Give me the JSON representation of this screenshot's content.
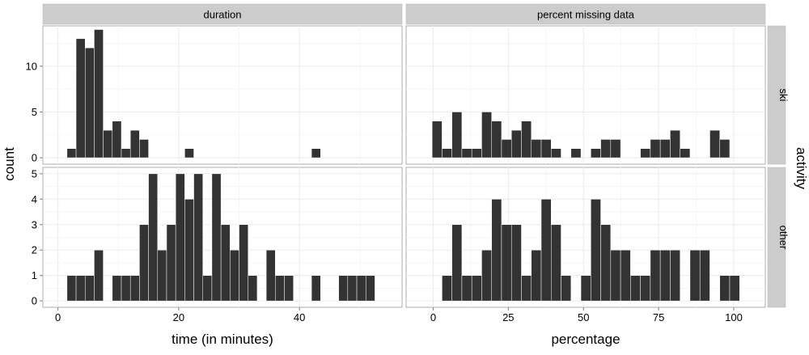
{
  "figure": {
    "y_axis_label": "count",
    "row_facet_variable": "activity",
    "colors": {
      "bar": "#333333",
      "bar_edge": "#ffffff",
      "panel_bg": "#ffffff",
      "grid": "#ebebeb",
      "strip_bg": "#cccccc",
      "text": "#000000",
      "tick_label": "#4d4d4d"
    }
  },
  "chart_data": [
    {
      "type": "bar",
      "facet_col": "duration",
      "facet_row": "ski",
      "xlabel": "time (in minutes)",
      "xlim": [
        -2.5,
        57
      ],
      "ylim": [
        -0.7,
        14.4
      ],
      "x_ticks": [
        0,
        20,
        40
      ],
      "y_ticks": [
        0,
        5,
        10
      ],
      "bin_width": 1.5,
      "x": [
        2.25,
        3.75,
        5.25,
        6.75,
        8.25,
        9.75,
        11.25,
        12.75,
        14.25,
        15.75,
        17.25,
        18.75,
        20.25,
        21.75,
        23.25,
        24.75,
        26.25,
        27.75,
        29.25,
        30.75,
        32.25,
        33.75,
        35.25,
        36.75,
        38.25,
        39.75,
        41.25,
        42.75,
        44.25,
        45.75,
        47.25,
        48.75,
        50.25,
        51.75
      ],
      "values": [
        1,
        13,
        12,
        14,
        3,
        4,
        1,
        3,
        2,
        0,
        0,
        0,
        0,
        1,
        0,
        0,
        0,
        0,
        0,
        0,
        0,
        0,
        0,
        0,
        0,
        0,
        0,
        1,
        0,
        0,
        0,
        0,
        0,
        0
      ]
    },
    {
      "type": "bar",
      "facet_col": "percent missing data",
      "facet_row": "ski",
      "xlabel": "percentage",
      "xlim": [
        -9,
        110.5
      ],
      "ylim": [
        -0.7,
        14.4
      ],
      "x_ticks": [
        0,
        25,
        50,
        75,
        100
      ],
      "y_ticks": [
        0,
        5,
        10
      ],
      "bin_width": 3.3,
      "x": [
        1.3,
        4.6,
        7.9,
        11.2,
        14.5,
        17.8,
        21.1,
        24.4,
        27.7,
        31.0,
        34.3,
        37.6,
        40.9,
        44.2,
        47.5,
        50.8,
        54.1,
        57.4,
        60.7,
        64.0,
        67.3,
        70.6,
        73.9,
        77.2,
        80.5,
        83.8,
        87.1,
        90.4,
        93.7,
        97.0
      ],
      "values": [
        4,
        1,
        5,
        1,
        1,
        5,
        4,
        2,
        3,
        4,
        2,
        2,
        1,
        0,
        1,
        0,
        1,
        2,
        2,
        0,
        0,
        1,
        2,
        2,
        3,
        1,
        0,
        0,
        3,
        2
      ]
    },
    {
      "type": "bar",
      "facet_col": "duration",
      "facet_row": "other",
      "xlabel": "time (in minutes)",
      "xlim": [
        -2.5,
        57
      ],
      "ylim": [
        -0.25,
        5.25
      ],
      "x_ticks": [
        0,
        20,
        40
      ],
      "y_ticks": [
        0,
        1,
        2,
        3,
        4,
        5
      ],
      "bin_width": 1.5,
      "x": [
        2.25,
        3.75,
        5.25,
        6.75,
        8.25,
        9.75,
        11.25,
        12.75,
        14.25,
        15.75,
        17.25,
        18.75,
        20.25,
        21.75,
        23.25,
        24.75,
        26.25,
        27.75,
        29.25,
        30.75,
        32.25,
        33.75,
        35.25,
        36.75,
        38.25,
        39.75,
        41.25,
        42.75,
        44.25,
        45.75,
        47.25,
        48.75,
        50.25,
        51.75
      ],
      "values": [
        1,
        1,
        1,
        2,
        0,
        1,
        1,
        1,
        3,
        5,
        2,
        3,
        5,
        4,
        5,
        1,
        5,
        3,
        2,
        3,
        1,
        0,
        2,
        1,
        1,
        0,
        0,
        1,
        0,
        0,
        1,
        1,
        1,
        1
      ]
    },
    {
      "type": "bar",
      "facet_col": "percent missing data",
      "facet_row": "other",
      "xlabel": "percentage",
      "xlim": [
        -9,
        110.5
      ],
      "ylim": [
        -0.25,
        5.25
      ],
      "x_ticks": [
        0,
        25,
        50,
        75,
        100
      ],
      "y_ticks": [
        0,
        1,
        2,
        3,
        4,
        5
      ],
      "bin_width": 3.3,
      "x": [
        4.6,
        7.9,
        11.2,
        14.5,
        17.8,
        21.1,
        24.4,
        27.7,
        31.0,
        34.3,
        37.6,
        40.9,
        44.2,
        47.5,
        50.8,
        54.1,
        57.4,
        60.7,
        64.0,
        67.3,
        70.6,
        73.9,
        77.2,
        80.5,
        83.8,
        87.1,
        90.4,
        93.7,
        97.0,
        100.3
      ],
      "values": [
        1,
        3,
        1,
        1,
        2,
        4,
        3,
        3,
        1,
        2,
        4,
        3,
        1,
        0,
        1,
        4,
        3,
        2,
        2,
        1,
        1,
        2,
        2,
        2,
        0,
        2,
        2,
        0,
        1,
        1
      ]
    }
  ]
}
